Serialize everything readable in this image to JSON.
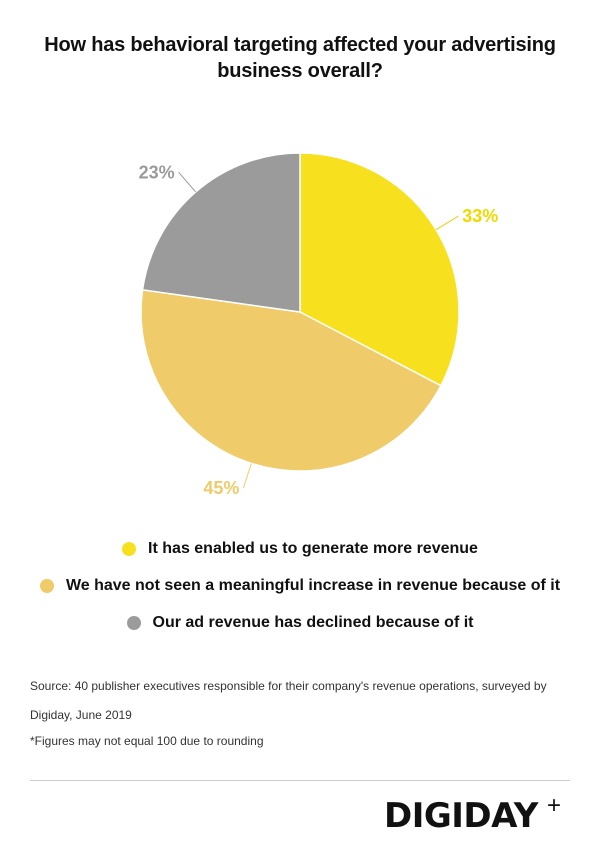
{
  "chart_data": {
    "type": "pie",
    "title": "How has behavioral targeting affected your advertising business overall?",
    "slices": [
      {
        "label": "It has enabled us to generate more revenue",
        "value": 33,
        "value_label": "33%",
        "color": "#f7e11f"
      },
      {
        "label": "We have not seen a meaningful increase in revenue because of it",
        "value": 45,
        "value_label": "45%",
        "color": "#efcb6a"
      },
      {
        "label": "Our ad revenue has declined because of it",
        "value": 23,
        "value_label": "23%",
        "color": "#9b9b9b"
      }
    ],
    "legend_position": "bottom"
  },
  "footer": {
    "source": "Source: 40 publisher executives responsible for their company's revenue operations, surveyed by Digiday, June 2019",
    "note": "*Figures may not equal 100 due to rounding",
    "brand": "DIGIDAY",
    "brand_mark": "+"
  }
}
